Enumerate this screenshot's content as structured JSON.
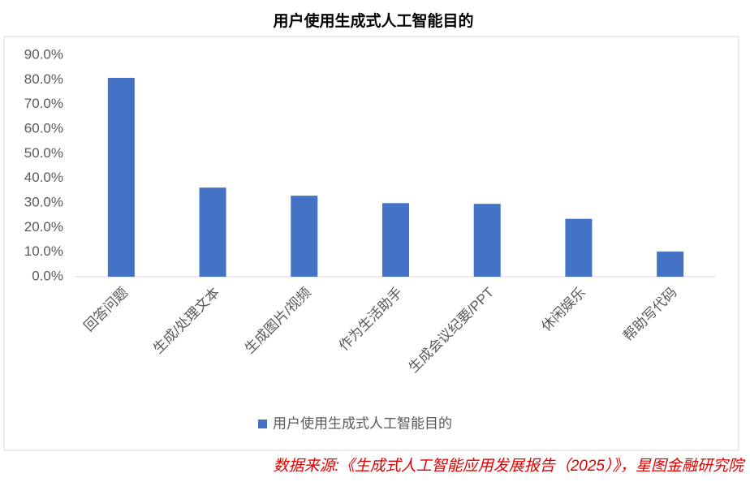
{
  "chart_data": {
    "type": "bar",
    "title": "用户使用生成式人工智能目的",
    "categories": [
      "回答问题",
      "生成/处理文本",
      "生成图片/视频",
      "作为生活助手",
      "生成会议纪要/PPT",
      "休闲娱乐",
      "帮助写代码"
    ],
    "series": [
      {
        "name": "用户使用生成式人工智能目的",
        "color": "#4472c4",
        "values": [
          80.8,
          36.2,
          32.9,
          29.9,
          29.6,
          23.5,
          10.2
        ]
      }
    ],
    "ylim": [
      0,
      90
    ],
    "yticks": [
      {
        "value": 0,
        "label": "0.0%"
      },
      {
        "value": 10,
        "label": "10.0%"
      },
      {
        "value": 20,
        "label": "20.0%"
      },
      {
        "value": 30,
        "label": "30.0%"
      },
      {
        "value": 40,
        "label": "40.0%"
      },
      {
        "value": 50,
        "label": "50.0%"
      },
      {
        "value": 60,
        "label": "60.0%"
      },
      {
        "value": 70,
        "label": "70.0%"
      },
      {
        "value": 80,
        "label": "80.0%"
      },
      {
        "value": 90,
        "label": "90.0%"
      }
    ],
    "grid": false,
    "legend": "bottom",
    "source": "数据来源:《生成式人工智能应用发展报告（2025）》，星图金融研究院"
  }
}
